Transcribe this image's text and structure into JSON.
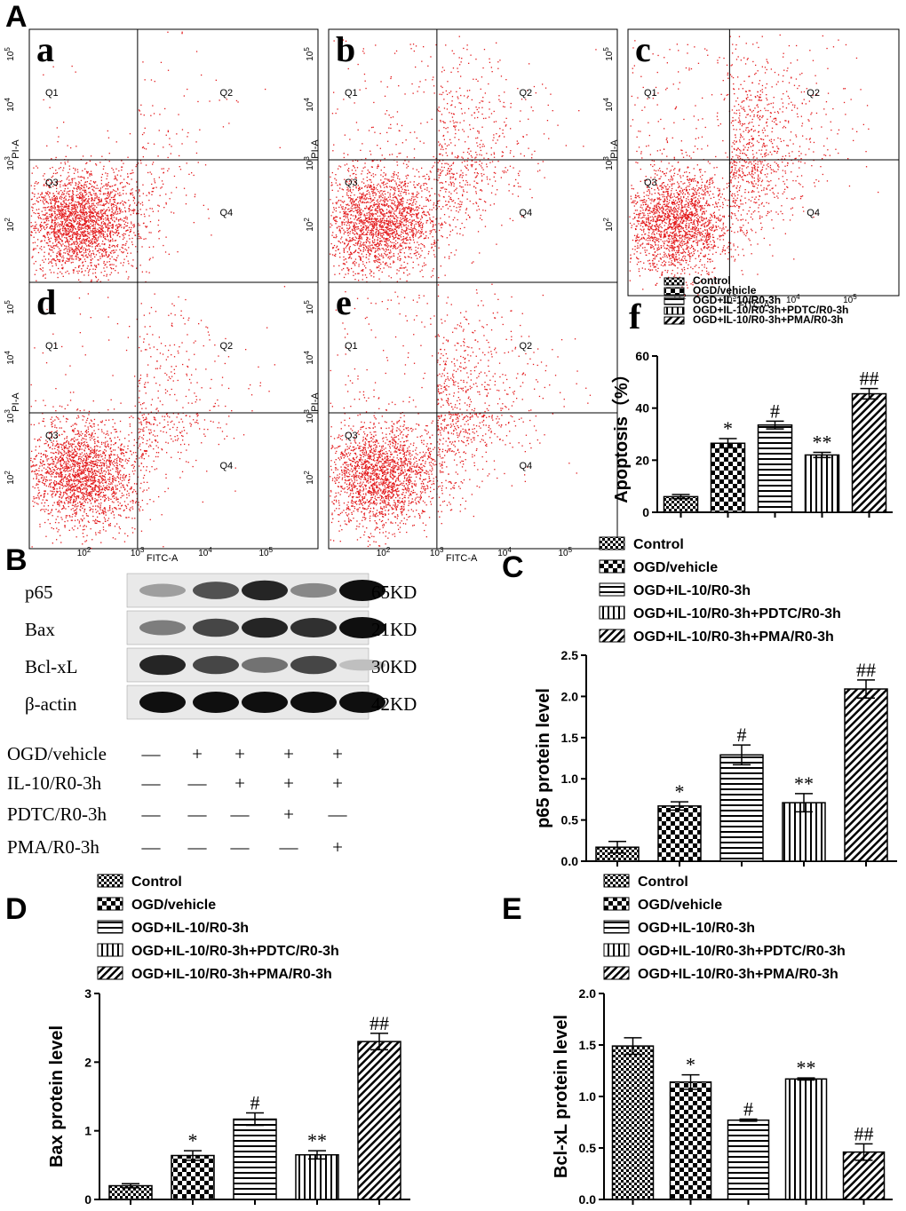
{
  "figure_labels": {
    "A": "A",
    "B": "B",
    "C": "C",
    "D": "D",
    "E": "E"
  },
  "flow": {
    "x_label": "FITC-A",
    "y_label": "PI-A",
    "x_ticks": [
      "10",
      "10",
      "10",
      "10"
    ],
    "x_tick_exps": [
      "2",
      "3",
      "4",
      "5"
    ],
    "y_ticks": [
      "10",
      "10",
      "10",
      "10"
    ],
    "y_tick_exps": [
      "2",
      "3",
      "4",
      "5"
    ],
    "quadrants": [
      "Q1",
      "Q2",
      "Q3",
      "Q4"
    ],
    "panels": [
      {
        "letter": "a",
        "density": 0.0
      },
      {
        "letter": "b",
        "density": 0.0
      },
      {
        "letter": "c",
        "density": 0.0
      },
      {
        "letter": "d",
        "density": 0.0
      },
      {
        "letter": "e",
        "density": 0.0
      }
    ],
    "dot_color": "#e31a1c"
  },
  "western": {
    "proteins": [
      {
        "name": "p65",
        "size": "65KD"
      },
      {
        "name": "Bax",
        "size": "21KD"
      },
      {
        "name": "Bcl-xL",
        "size": "30KD"
      },
      {
        "name": "β-actin",
        "size": "42KD"
      }
    ],
    "conditions": [
      {
        "name": "OGD/vehicle",
        "signs": [
          "—",
          "+",
          "+",
          "+",
          "+"
        ]
      },
      {
        "name": "IL-10/R0-3h",
        "signs": [
          "—",
          "—",
          "+",
          "+",
          "+"
        ]
      },
      {
        "name": "PDTC/R0-3h",
        "signs": [
          "—",
          "—",
          "—",
          "+",
          "—"
        ]
      },
      {
        "name": "PMA/R0-3h",
        "signs": [
          "—",
          "—",
          "—",
          "—",
          "+"
        ]
      }
    ]
  },
  "groups": [
    "Control",
    "OGD/vehicle",
    "OGD+IL-10/R0-3h",
    "OGD+IL-10/R0-3h+PDTC/R0-3h",
    "OGD+IL-10/R0-3h+PMA/R0-3h"
  ],
  "chart_data": [
    {
      "id": "f",
      "type": "bar",
      "title": "f",
      "ylabel": "Apoptosis（%）",
      "ylim": [
        0,
        60
      ],
      "yticks": [
        "0",
        "20",
        "40",
        "60"
      ],
      "categories": [
        "Control",
        "OGD/vehicle",
        "OGD+IL-10/R0-3h",
        "OGD+IL-10/R0-3h+PDTC/R0-3h",
        "OGD+IL-10/R0-3h+PMA/R0-3h"
      ],
      "values": [
        6,
        26.5,
        33.5,
        22,
        45.5
      ],
      "errors": [
        0.8,
        1.8,
        1.5,
        1.0,
        2.0
      ],
      "sig": [
        "",
        "*",
        "#",
        "**",
        "##"
      ]
    },
    {
      "id": "C",
      "type": "bar",
      "ylabel": "p65 protein level",
      "ylim": [
        0,
        2.5
      ],
      "yticks": [
        "0.0",
        "0.5",
        "1.0",
        "1.5",
        "2.0",
        "2.5"
      ],
      "categories": [
        "Control",
        "OGD/vehicle",
        "OGD+IL-10/R0-3h",
        "OGD+IL-10/R0-3h+PDTC/R0-3h",
        "OGD+IL-10/R0-3h+PMA/R0-3h"
      ],
      "values": [
        0.17,
        0.67,
        1.29,
        0.71,
        2.09
      ],
      "errors": [
        0.07,
        0.05,
        0.12,
        0.11,
        0.11
      ],
      "sig": [
        "",
        "*",
        "#",
        "**",
        "##"
      ]
    },
    {
      "id": "D",
      "type": "bar",
      "ylabel": "Bax protein level",
      "ylim": [
        0,
        3
      ],
      "yticks": [
        "0",
        "1",
        "2",
        "3"
      ],
      "categories": [
        "Control",
        "OGD/vehicle",
        "OGD+IL-10/R0-3h",
        "OGD+IL-10/R0-3h+PDTC/R0-3h",
        "OGD+IL-10/R0-3h+PMA/R0-3h"
      ],
      "values": [
        0.2,
        0.64,
        1.17,
        0.65,
        2.3
      ],
      "errors": [
        0.03,
        0.07,
        0.09,
        0.06,
        0.12
      ],
      "sig": [
        "",
        "*",
        "#",
        "**",
        "##"
      ]
    },
    {
      "id": "E",
      "type": "bar",
      "ylabel": "Bcl-xL protein level",
      "ylim": [
        0,
        2.0
      ],
      "yticks": [
        "0.0",
        "0.5",
        "1.0",
        "1.5",
        "2.0"
      ],
      "categories": [
        "Control",
        "OGD/vehicle",
        "OGD+IL-10/R0-3h",
        "OGD+IL-10/R0-3h+PDTC/R0-3h",
        "OGD+IL-10/R0-3h+PMA/R0-3h"
      ],
      "values": [
        1.49,
        1.14,
        0.77,
        1.17,
        0.46
      ],
      "errors": [
        0.08,
        0.07,
        0.01,
        0.01,
        0.08
      ],
      "sig": [
        "",
        "*",
        "#",
        "**",
        "##"
      ]
    }
  ]
}
